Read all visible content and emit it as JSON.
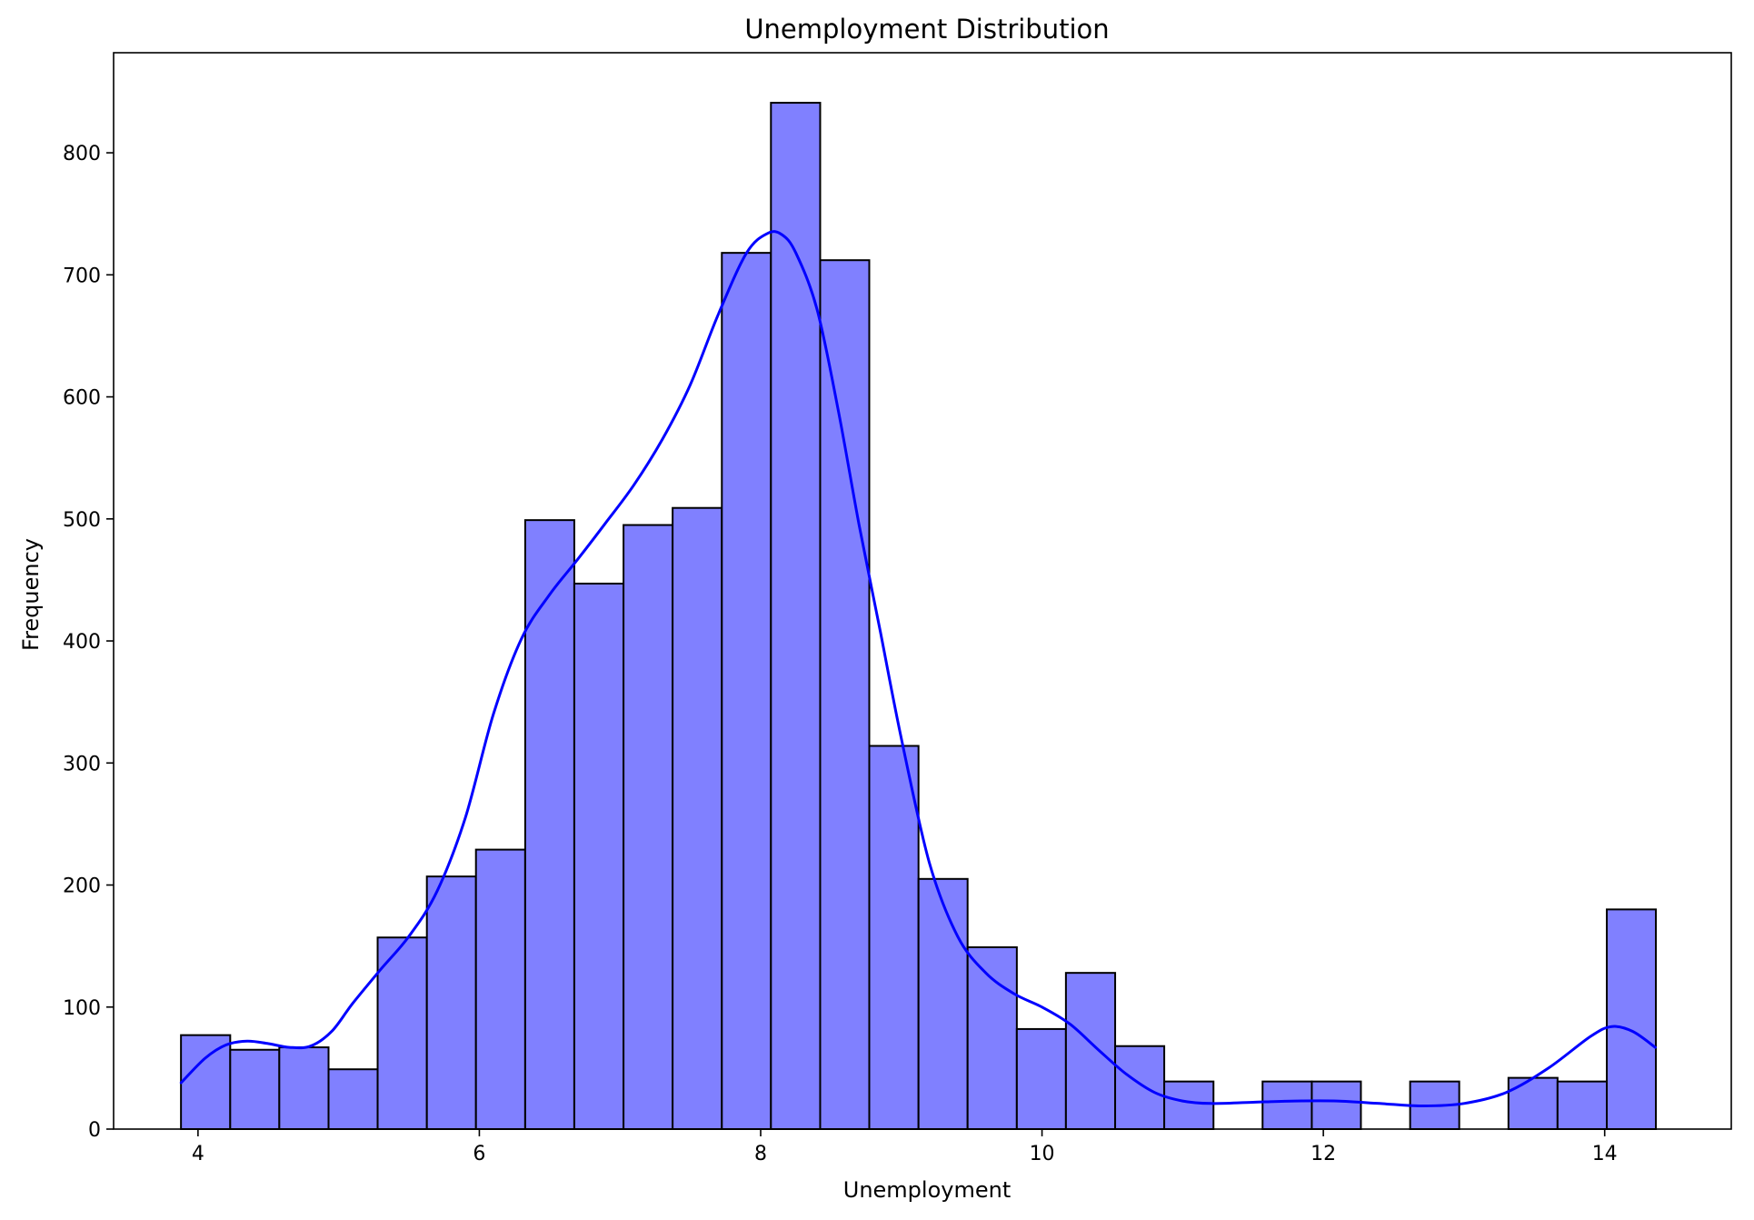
{
  "chart_data": {
    "type": "bar",
    "subtype": "histogram",
    "title": "Unemployment Distribution",
    "xlabel": "Unemployment",
    "ylabel": "Frequency",
    "xlim": [
      3.4,
      14.9
    ],
    "ylim": [
      0,
      882
    ],
    "xticks": [
      4,
      6,
      8,
      10,
      12,
      14
    ],
    "yticks": [
      0,
      100,
      200,
      300,
      400,
      500,
      600,
      700,
      800
    ],
    "grid": false,
    "bar_color": "#8080ff",
    "edge_color": "#000000",
    "kde_color": "#0000ff",
    "bins": [
      {
        "x0": 3.879,
        "x1": 4.229,
        "count": 77
      },
      {
        "x0": 4.229,
        "x1": 4.578,
        "count": 65
      },
      {
        "x0": 4.578,
        "x1": 4.928,
        "count": 67
      },
      {
        "x0": 4.928,
        "x1": 5.277,
        "count": 49
      },
      {
        "x0": 5.277,
        "x1": 5.627,
        "count": 157
      },
      {
        "x0": 5.627,
        "x1": 5.976,
        "count": 207
      },
      {
        "x0": 5.976,
        "x1": 6.326,
        "count": 229
      },
      {
        "x0": 6.326,
        "x1": 6.675,
        "count": 499
      },
      {
        "x0": 6.675,
        "x1": 7.025,
        "count": 447
      },
      {
        "x0": 7.025,
        "x1": 7.374,
        "count": 495
      },
      {
        "x0": 7.374,
        "x1": 7.724,
        "count": 509
      },
      {
        "x0": 7.724,
        "x1": 8.073,
        "count": 718
      },
      {
        "x0": 8.073,
        "x1": 8.423,
        "count": 841
      },
      {
        "x0": 8.423,
        "x1": 8.772,
        "count": 712
      },
      {
        "x0": 8.772,
        "x1": 9.122,
        "count": 314
      },
      {
        "x0": 9.122,
        "x1": 9.471,
        "count": 205
      },
      {
        "x0": 9.471,
        "x1": 9.821,
        "count": 149
      },
      {
        "x0": 9.821,
        "x1": 10.17,
        "count": 82
      },
      {
        "x0": 10.17,
        "x1": 10.52,
        "count": 128
      },
      {
        "x0": 10.52,
        "x1": 10.869,
        "count": 68
      },
      {
        "x0": 10.869,
        "x1": 11.219,
        "count": 39
      },
      {
        "x0": 11.219,
        "x1": 11.568,
        "count": 0
      },
      {
        "x0": 11.568,
        "x1": 11.918,
        "count": 39
      },
      {
        "x0": 11.918,
        "x1": 12.267,
        "count": 39
      },
      {
        "x0": 12.267,
        "x1": 12.617,
        "count": 0
      },
      {
        "x0": 12.617,
        "x1": 12.966,
        "count": 39
      },
      {
        "x0": 12.966,
        "x1": 13.316,
        "count": 0
      },
      {
        "x0": 13.316,
        "x1": 13.665,
        "count": 42
      },
      {
        "x0": 13.665,
        "x1": 14.015,
        "count": 39
      },
      {
        "x0": 14.015,
        "x1": 14.364,
        "count": 180
      }
    ],
    "kde_curve": {
      "x": [
        3.88,
        4.05,
        4.2,
        4.35,
        4.5,
        4.65,
        4.8,
        4.95,
        5.1,
        5.3,
        5.5,
        5.7,
        5.9,
        6.1,
        6.3,
        6.5,
        6.7,
        6.9,
        7.1,
        7.3,
        7.5,
        7.7,
        7.9,
        8.05,
        8.15,
        8.25,
        8.4,
        8.55,
        8.7,
        8.85,
        9.0,
        9.2,
        9.4,
        9.6,
        9.8,
        10.0,
        10.2,
        10.4,
        10.6,
        10.8,
        11.0,
        11.2,
        11.5,
        11.8,
        12.1,
        12.4,
        12.7,
        13.0,
        13.3,
        13.6,
        13.9,
        14.05,
        14.2,
        14.36
      ],
      "y": [
        38,
        58,
        69,
        72,
        70,
        67,
        68,
        80,
        103,
        131,
        158,
        195,
        255,
        340,
        402,
        438,
        467,
        497,
        528,
        565,
        610,
        668,
        718,
        734,
        733,
        718,
        672,
        590,
        495,
        408,
        320,
        218,
        158,
        128,
        111,
        100,
        86,
        65,
        45,
        30,
        23,
        21,
        22,
        23,
        23,
        21,
        19,
        21,
        30,
        50,
        76,
        84,
        80,
        67
      ]
    }
  }
}
